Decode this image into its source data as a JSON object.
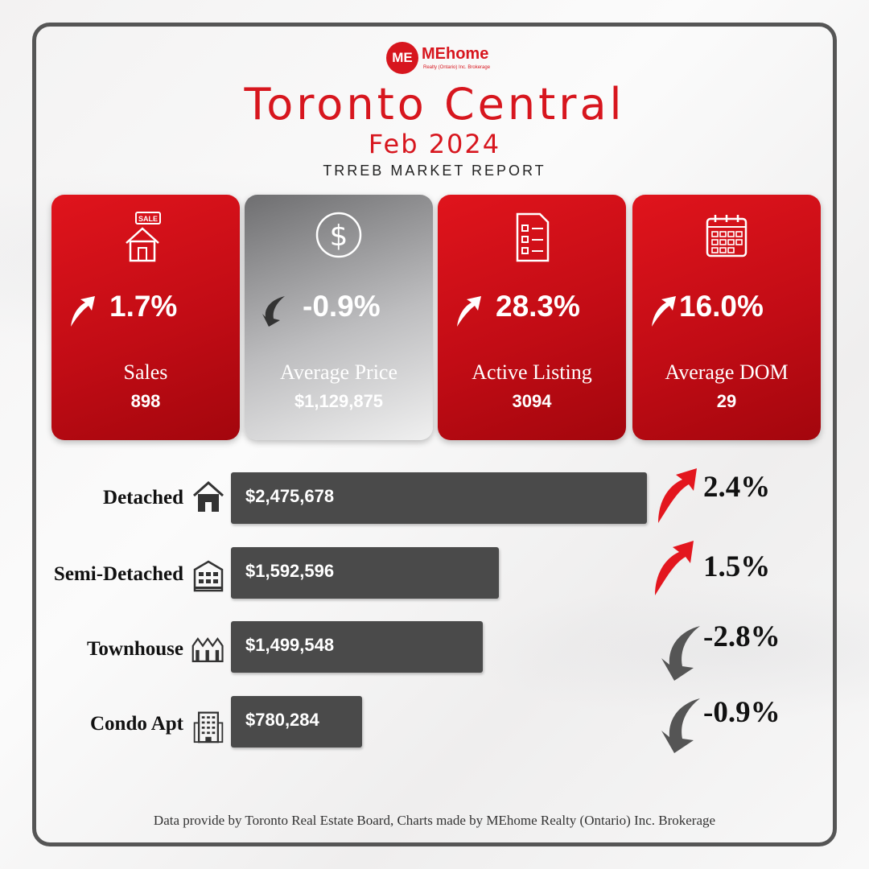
{
  "logo": {
    "mark": "ME",
    "name": "MEhome",
    "sub": "Realty (Ontario) Inc. Brokerage"
  },
  "header": {
    "title": "Toronto Central",
    "subtitle": "Feb 2024",
    "report": "TRREB MARKET REPORT"
  },
  "cards": [
    {
      "icon": "sale-house-icon",
      "change": "1.7%",
      "direction": "up",
      "label": "Sales",
      "value": "898",
      "style": "red"
    },
    {
      "icon": "dollar-icon",
      "change": "-0.9%",
      "direction": "down",
      "label": "Average Price",
      "value": "$1,129,875",
      "style": "gray"
    },
    {
      "icon": "checklist-icon",
      "change": "28.3%",
      "direction": "up",
      "label": "Active Listing",
      "value": "3094",
      "style": "red"
    },
    {
      "icon": "calendar-icon",
      "change": "16.0%",
      "direction": "up",
      "label": "Average DOM",
      "value": "29",
      "style": "red"
    }
  ],
  "chart_data": {
    "type": "bar",
    "categories": [
      "Detached",
      "Semi-Detached",
      "Townhouse",
      "Condo Apt"
    ],
    "values": [
      2475678,
      1592596,
      1499548,
      780284
    ],
    "value_labels": [
      "$2,475,678",
      "$1,592,596",
      "$1,499,548",
      "$780,284"
    ],
    "changes": [
      "2.4%",
      "1.5%",
      "-2.8%",
      "-0.9%"
    ],
    "directions": [
      "up",
      "up",
      "down",
      "down"
    ],
    "icons": [
      "house-icon",
      "semi-detached-icon",
      "townhouse-icon",
      "condo-icon"
    ],
    "orientation": "horizontal"
  },
  "colors": {
    "brand_red": "#d7161e",
    "bar": "#4a4a4a",
    "down_arrow": "#555555"
  },
  "footer": "Data provide by Toronto Real Estate Board, Charts made by MEhome Realty (Ontario) Inc. Brokerage"
}
